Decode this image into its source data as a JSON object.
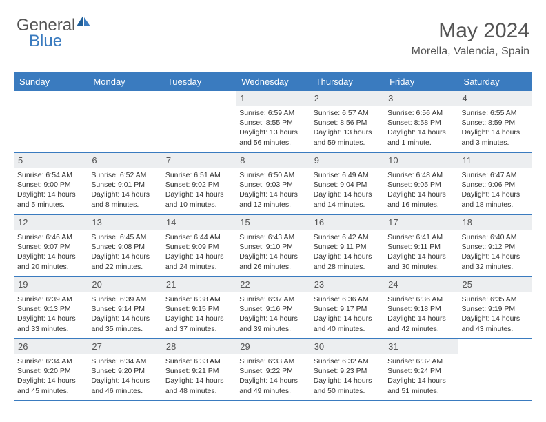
{
  "brand": {
    "part1": "General",
    "part2": "Blue"
  },
  "title": "May 2024",
  "location": "Morella, Valencia, Spain",
  "colors": {
    "header_bg": "#3a7bbf",
    "daynum_bg": "#eceef0",
    "text": "#555555",
    "row_divider": "#3a7bbf",
    "page_bg": "#ffffff"
  },
  "typography": {
    "title_fontsize": 30,
    "location_fontsize": 16,
    "dayhead_fontsize": 13,
    "body_fontsize": 10.5
  },
  "dayNames": [
    "Sunday",
    "Monday",
    "Tuesday",
    "Wednesday",
    "Thursday",
    "Friday",
    "Saturday"
  ],
  "weeks": [
    [
      {
        "n": "",
        "sr": "",
        "ss": "",
        "dl": ""
      },
      {
        "n": "",
        "sr": "",
        "ss": "",
        "dl": ""
      },
      {
        "n": "",
        "sr": "",
        "ss": "",
        "dl": ""
      },
      {
        "n": "1",
        "sr": "Sunrise: 6:59 AM",
        "ss": "Sunset: 8:55 PM",
        "dl": "Daylight: 13 hours and 56 minutes."
      },
      {
        "n": "2",
        "sr": "Sunrise: 6:57 AM",
        "ss": "Sunset: 8:56 PM",
        "dl": "Daylight: 13 hours and 59 minutes."
      },
      {
        "n": "3",
        "sr": "Sunrise: 6:56 AM",
        "ss": "Sunset: 8:58 PM",
        "dl": "Daylight: 14 hours and 1 minute."
      },
      {
        "n": "4",
        "sr": "Sunrise: 6:55 AM",
        "ss": "Sunset: 8:59 PM",
        "dl": "Daylight: 14 hours and 3 minutes."
      }
    ],
    [
      {
        "n": "5",
        "sr": "Sunrise: 6:54 AM",
        "ss": "Sunset: 9:00 PM",
        "dl": "Daylight: 14 hours and 5 minutes."
      },
      {
        "n": "6",
        "sr": "Sunrise: 6:52 AM",
        "ss": "Sunset: 9:01 PM",
        "dl": "Daylight: 14 hours and 8 minutes."
      },
      {
        "n": "7",
        "sr": "Sunrise: 6:51 AM",
        "ss": "Sunset: 9:02 PM",
        "dl": "Daylight: 14 hours and 10 minutes."
      },
      {
        "n": "8",
        "sr": "Sunrise: 6:50 AM",
        "ss": "Sunset: 9:03 PM",
        "dl": "Daylight: 14 hours and 12 minutes."
      },
      {
        "n": "9",
        "sr": "Sunrise: 6:49 AM",
        "ss": "Sunset: 9:04 PM",
        "dl": "Daylight: 14 hours and 14 minutes."
      },
      {
        "n": "10",
        "sr": "Sunrise: 6:48 AM",
        "ss": "Sunset: 9:05 PM",
        "dl": "Daylight: 14 hours and 16 minutes."
      },
      {
        "n": "11",
        "sr": "Sunrise: 6:47 AM",
        "ss": "Sunset: 9:06 PM",
        "dl": "Daylight: 14 hours and 18 minutes."
      }
    ],
    [
      {
        "n": "12",
        "sr": "Sunrise: 6:46 AM",
        "ss": "Sunset: 9:07 PM",
        "dl": "Daylight: 14 hours and 20 minutes."
      },
      {
        "n": "13",
        "sr": "Sunrise: 6:45 AM",
        "ss": "Sunset: 9:08 PM",
        "dl": "Daylight: 14 hours and 22 minutes."
      },
      {
        "n": "14",
        "sr": "Sunrise: 6:44 AM",
        "ss": "Sunset: 9:09 PM",
        "dl": "Daylight: 14 hours and 24 minutes."
      },
      {
        "n": "15",
        "sr": "Sunrise: 6:43 AM",
        "ss": "Sunset: 9:10 PM",
        "dl": "Daylight: 14 hours and 26 minutes."
      },
      {
        "n": "16",
        "sr": "Sunrise: 6:42 AM",
        "ss": "Sunset: 9:11 PM",
        "dl": "Daylight: 14 hours and 28 minutes."
      },
      {
        "n": "17",
        "sr": "Sunrise: 6:41 AM",
        "ss": "Sunset: 9:11 PM",
        "dl": "Daylight: 14 hours and 30 minutes."
      },
      {
        "n": "18",
        "sr": "Sunrise: 6:40 AM",
        "ss": "Sunset: 9:12 PM",
        "dl": "Daylight: 14 hours and 32 minutes."
      }
    ],
    [
      {
        "n": "19",
        "sr": "Sunrise: 6:39 AM",
        "ss": "Sunset: 9:13 PM",
        "dl": "Daylight: 14 hours and 33 minutes."
      },
      {
        "n": "20",
        "sr": "Sunrise: 6:39 AM",
        "ss": "Sunset: 9:14 PM",
        "dl": "Daylight: 14 hours and 35 minutes."
      },
      {
        "n": "21",
        "sr": "Sunrise: 6:38 AM",
        "ss": "Sunset: 9:15 PM",
        "dl": "Daylight: 14 hours and 37 minutes."
      },
      {
        "n": "22",
        "sr": "Sunrise: 6:37 AM",
        "ss": "Sunset: 9:16 PM",
        "dl": "Daylight: 14 hours and 39 minutes."
      },
      {
        "n": "23",
        "sr": "Sunrise: 6:36 AM",
        "ss": "Sunset: 9:17 PM",
        "dl": "Daylight: 14 hours and 40 minutes."
      },
      {
        "n": "24",
        "sr": "Sunrise: 6:36 AM",
        "ss": "Sunset: 9:18 PM",
        "dl": "Daylight: 14 hours and 42 minutes."
      },
      {
        "n": "25",
        "sr": "Sunrise: 6:35 AM",
        "ss": "Sunset: 9:19 PM",
        "dl": "Daylight: 14 hours and 43 minutes."
      }
    ],
    [
      {
        "n": "26",
        "sr": "Sunrise: 6:34 AM",
        "ss": "Sunset: 9:20 PM",
        "dl": "Daylight: 14 hours and 45 minutes."
      },
      {
        "n": "27",
        "sr": "Sunrise: 6:34 AM",
        "ss": "Sunset: 9:20 PM",
        "dl": "Daylight: 14 hours and 46 minutes."
      },
      {
        "n": "28",
        "sr": "Sunrise: 6:33 AM",
        "ss": "Sunset: 9:21 PM",
        "dl": "Daylight: 14 hours and 48 minutes."
      },
      {
        "n": "29",
        "sr": "Sunrise: 6:33 AM",
        "ss": "Sunset: 9:22 PM",
        "dl": "Daylight: 14 hours and 49 minutes."
      },
      {
        "n": "30",
        "sr": "Sunrise: 6:32 AM",
        "ss": "Sunset: 9:23 PM",
        "dl": "Daylight: 14 hours and 50 minutes."
      },
      {
        "n": "31",
        "sr": "Sunrise: 6:32 AM",
        "ss": "Sunset: 9:24 PM",
        "dl": "Daylight: 14 hours and 51 minutes."
      },
      {
        "n": "",
        "sr": "",
        "ss": "",
        "dl": ""
      }
    ]
  ]
}
